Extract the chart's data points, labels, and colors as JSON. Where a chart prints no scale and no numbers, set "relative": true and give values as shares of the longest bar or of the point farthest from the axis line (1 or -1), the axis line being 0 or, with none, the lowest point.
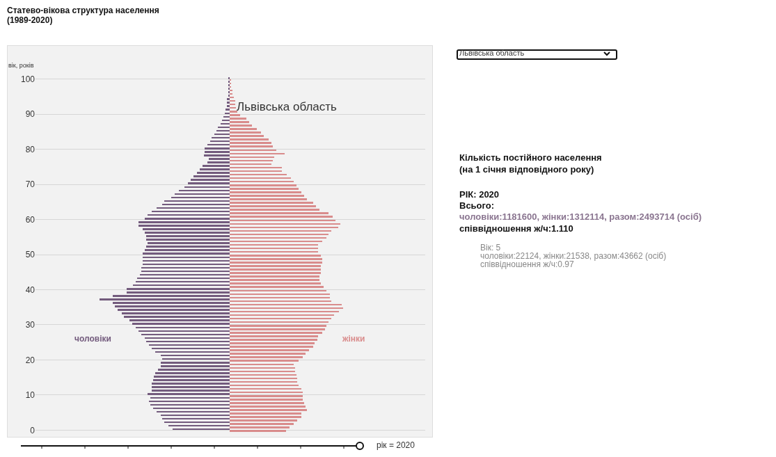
{
  "chart_data": {
    "type": "bar",
    "orientation": "horizontal",
    "relative": true,
    "grid": "y",
    "tick_labels": "y",
    "title": "Статево-вікова структура населення\n(1989-2020)",
    "ylabel": "вік, років",
    "categories": [
      "100",
      null,
      null,
      null,
      null,
      null,
      null,
      null,
      null,
      null,
      "90",
      null,
      null,
      null,
      null,
      null,
      null,
      null,
      null,
      null,
      "80",
      null,
      null,
      null,
      null,
      null,
      null,
      null,
      null,
      null,
      "70",
      null,
      null,
      null,
      null,
      null,
      null,
      null,
      null,
      null,
      "60",
      null,
      null,
      null,
      null,
      null,
      null,
      null,
      null,
      null,
      "50",
      null,
      null,
      null,
      null,
      null,
      null,
      null,
      null,
      null,
      "40",
      null,
      null,
      null,
      null,
      null,
      null,
      null,
      null,
      null,
      "30",
      null,
      null,
      null,
      null,
      null,
      null,
      null,
      null,
      null,
      "20",
      null,
      null,
      null,
      null,
      null,
      null,
      null,
      null,
      null,
      "10",
      null,
      null,
      null,
      null,
      null,
      null,
      null,
      null,
      null,
      "0"
    ],
    "series": [
      {
        "name": "чоловіки",
        "color": "#735b7d",
        "values": [
          -0.01,
          -0.01,
          -0.01,
          -0.01,
          -0.01,
          -0.01,
          -0.02,
          -0.02,
          -0.02,
          -0.03,
          -0.04,
          -0.05,
          -0.06,
          -0.07,
          -0.09,
          -0.1,
          -0.12,
          -0.14,
          -0.15,
          -0.17,
          -0.19,
          -0.19,
          -0.2,
          -0.16,
          -0.17,
          -0.21,
          -0.23,
          -0.25,
          -0.28,
          -0.3,
          -0.32,
          -0.35,
          -0.39,
          -0.42,
          -0.45,
          -0.5,
          -0.52,
          -0.56,
          -0.6,
          -0.63,
          -0.65,
          -0.7,
          -0.7,
          -0.67,
          -0.65,
          -0.64,
          -0.64,
          -0.63,
          -0.64,
          -0.65,
          -0.67,
          -0.67,
          -0.67,
          -0.67,
          -0.68,
          -0.68,
          -0.69,
          -0.71,
          -0.72,
          -0.74,
          -0.79,
          -0.79,
          -0.9,
          -1,
          -0.9,
          -0.88,
          -0.86,
          -0.83,
          -0.81,
          -0.77,
          -0.75,
          -0.72,
          -0.7,
          -0.68,
          -0.65,
          -0.64,
          -0.62,
          -0.6,
          -0.57,
          -0.53,
          -0.52,
          -0.53,
          -0.53,
          -0.55,
          -0.57,
          -0.58,
          -0.59,
          -0.6,
          -0.6,
          -0.6,
          -0.63,
          -0.61,
          -0.62,
          -0.61,
          -0.59,
          -0.56,
          -0.53,
          -0.52,
          -0.5,
          -0.47,
          -0.44
        ]
      },
      {
        "name": "жінки",
        "color": "#d98c8c",
        "values": [
          0.01,
          0.01,
          0.01,
          0.02,
          0.02,
          0.03,
          0.04,
          0.04,
          0.05,
          0.06,
          0.08,
          0.13,
          0.15,
          0.17,
          0.21,
          0.24,
          0.26,
          0.3,
          0.32,
          0.33,
          0.36,
          0.42,
          0.34,
          0.33,
          0.32,
          0.4,
          0.4,
          0.44,
          0.47,
          0.49,
          0.51,
          0.53,
          0.55,
          0.57,
          0.59,
          0.64,
          0.66,
          0.69,
          0.76,
          0.79,
          0.81,
          0.85,
          0.83,
          0.78,
          0.76,
          0.74,
          0.71,
          0.68,
          0.68,
          0.68,
          0.7,
          0.71,
          0.71,
          0.7,
          0.7,
          0.7,
          0.69,
          0.69,
          0.7,
          0.72,
          0.74,
          0.77,
          0.77,
          0.78,
          0.86,
          0.87,
          0.84,
          0.8,
          0.78,
          0.76,
          0.74,
          0.73,
          0.71,
          0.68,
          0.67,
          0.65,
          0.64,
          0.61,
          0.58,
          0.56,
          0.53,
          0.49,
          0.5,
          0.5,
          0.51,
          0.52,
          0.52,
          0.53,
          0.55,
          0.56,
          0.56,
          0.56,
          0.57,
          0.58,
          0.59,
          0.55,
          0.55,
          0.52,
          0.49,
          0.46,
          0.43
        ]
      }
    ],
    "annotations": [
      "Львівська область",
      "Львівська область",
      "рік = 2020",
      "Кількість постійного населення",
      "(на 1 січня відповідного року)",
      "РІК: 2020",
      "Всього:",
      "чоловіки:1181600, жінки:1312114, разом:2493714 (осіб)",
      "співвідношення ж/ч:1.110",
      "Вік: 5",
      "чоловіки:22124, жінки:21538, разом:43662 (осіб)",
      "співвідношення ж/ч:0.97"
    ]
  }
}
